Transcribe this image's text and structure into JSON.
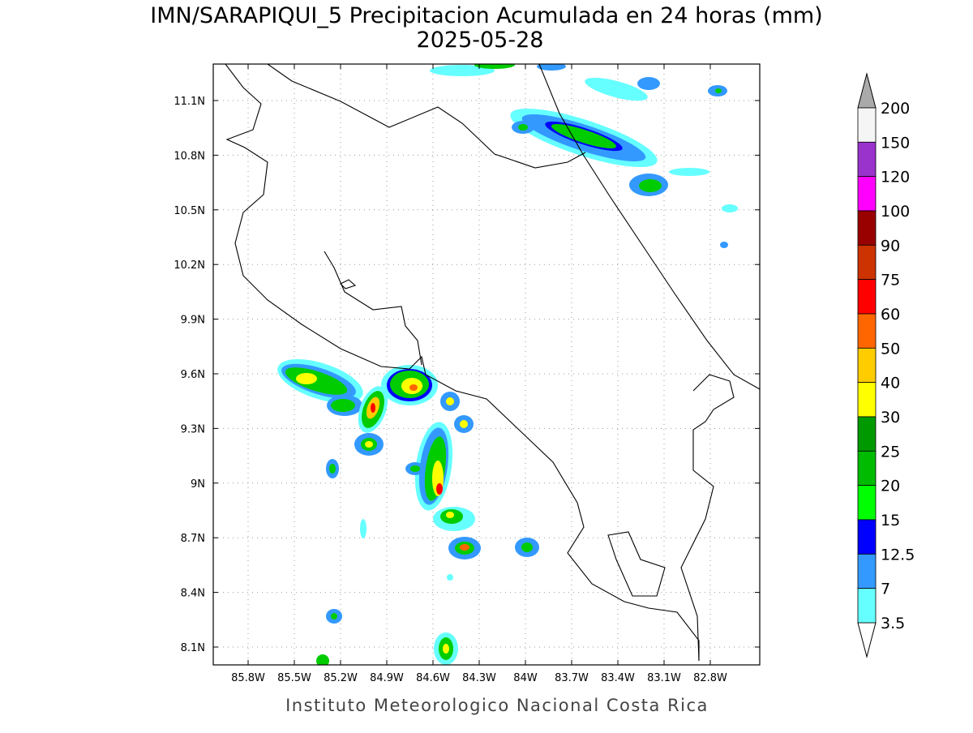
{
  "header": {
    "title": "IMN/SARAPIQUI_5 Precipitacion Acumulada en 24 horas (mm)",
    "date": "2025-05-28"
  },
  "map": {
    "lon_ticks": [
      "85.8W",
      "85.5W",
      "85.2W",
      "84.9W",
      "84.6W",
      "84.3W",
      "84W",
      "83.7W",
      "83.4W",
      "83.1W",
      "82.8W"
    ],
    "lat_ticks": [
      "11.1N",
      "10.8N",
      "10.5N",
      "10.2N",
      "9.9N",
      "9.6N",
      "9.3N",
      "9N",
      "8.7N",
      "8.4N",
      "8.1N"
    ]
  },
  "colorbar": {
    "levels": [
      200,
      150,
      120,
      100,
      90,
      75,
      60,
      50,
      40,
      30,
      25,
      20,
      15,
      12.5,
      7,
      3.5
    ],
    "colors": [
      "#f5f5f5",
      "#9933cc",
      "#ff00ff",
      "#990000",
      "#cc3300",
      "#ff0000",
      "#ff6600",
      "#ffcc00",
      "#ffff00",
      "#009900",
      "#00bb00",
      "#00ff00",
      "#0000ff",
      "#3399ff",
      "#66ffff"
    ]
  },
  "footer": "Instituto Meteorologico Nacional Costa Rica"
}
